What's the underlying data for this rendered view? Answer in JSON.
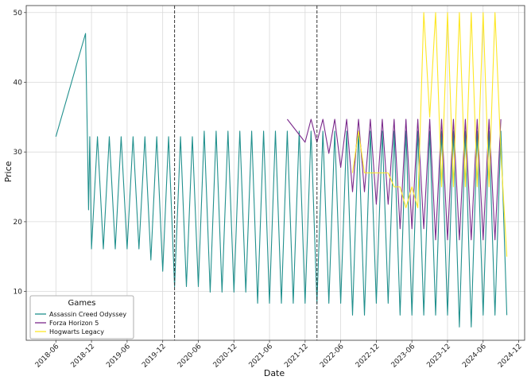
{
  "chart_data": {
    "type": "line",
    "title": "",
    "xlabel": "Date",
    "ylabel": "Price",
    "xlim": [
      "2018-01",
      "2025-01"
    ],
    "ylim": [
      3,
      51
    ],
    "grid": true,
    "legend": {
      "title": "Games",
      "placement": "bottom-left"
    },
    "x_ticks": [
      "2018-06",
      "2018-12",
      "2019-06",
      "2019-12",
      "2020-06",
      "2020-12",
      "2021-06",
      "2021-12",
      "2022-06",
      "2022-12",
      "2023-06",
      "2023-12",
      "2024-06",
      "2024-12"
    ],
    "y_ticks": [
      10,
      20,
      30,
      40,
      50
    ],
    "vertical_lines": [
      "2020-02",
      "2022-02"
    ],
    "series": [
      {
        "name": "Assassin Creed Odyssey",
        "color": "#21908d",
        "x": [
          "2018-06",
          "2018-11",
          "2018-11.3",
          "2018-11.5",
          "2018-11.7",
          "2018-12",
          "2019-01",
          "2019-02",
          "2019-03",
          "2019-04",
          "2019-05",
          "2019-06",
          "2019-07",
          "2019-08",
          "2019-09",
          "2019-10",
          "2019-11",
          "2019-12",
          "2020-01",
          "2020-02",
          "2020-03",
          "2020-04",
          "2020-05",
          "2020-06",
          "2020-07",
          "2020-08",
          "2020-09",
          "2020-10",
          "2020-11",
          "2020-12",
          "2021-01",
          "2021-02",
          "2021-03",
          "2021-04",
          "2021-05",
          "2021-06",
          "2021-07",
          "2021-08",
          "2021-09",
          "2021-10",
          "2021-11",
          "2021-12",
          "2022-01",
          "2022-02",
          "2022-03",
          "2022-04",
          "2022-05",
          "2022-06",
          "2022-07",
          "2022-08",
          "2022-09",
          "2022-10",
          "2022-11",
          "2022-12",
          "2023-01",
          "2023-02",
          "2023-03",
          "2023-04",
          "2023-05",
          "2023-06",
          "2023-07",
          "2023-08",
          "2023-09",
          "2023-10",
          "2023-11",
          "2023-12",
          "2024-01",
          "2024-02",
          "2024-03",
          "2024-04",
          "2024-05",
          "2024-06",
          "2024-07",
          "2024-08",
          "2024-09",
          "2024-10"
        ],
        "values": [
          32.2,
          47,
          32.2,
          21.7,
          32.2,
          16.1,
          32.2,
          16.1,
          32.2,
          16.1,
          32.2,
          16.1,
          32.2,
          16.1,
          32.2,
          14.5,
          32.2,
          12.9,
          32.2,
          10.7,
          32.2,
          10.7,
          32.2,
          10.7,
          33,
          9.9,
          33,
          9.9,
          33,
          9.9,
          33,
          9.9,
          33,
          8.3,
          33,
          8.3,
          33,
          8.3,
          33,
          8.3,
          33,
          8.3,
          33,
          8.3,
          33,
          8.3,
          33,
          8.3,
          33,
          6.6,
          33,
          6.6,
          33,
          8.3,
          33,
          8.3,
          33,
          6.6,
          33,
          6.6,
          33,
          6.6,
          33,
          6.6,
          33,
          6.6,
          33,
          4.9,
          33,
          4.9,
          33,
          6.6,
          33,
          6.6,
          33,
          6.6
        ]
      },
      {
        "name": "Forza Horizon 5",
        "color": "#7b2a8c",
        "x": [
          "2021-09",
          "2021-12",
          "2022-01",
          "2022-02",
          "2022-03",
          "2022-04",
          "2022-05",
          "2022-06",
          "2022-07",
          "2022-08",
          "2022-09",
          "2022-10",
          "2022-11",
          "2022-12",
          "2023-01",
          "2023-02",
          "2023-03",
          "2023-04",
          "2023-05",
          "2023-06",
          "2023-07",
          "2023-08",
          "2023-09",
          "2023-10",
          "2023-11",
          "2023-12",
          "2024-01",
          "2024-02",
          "2024-03",
          "2024-04",
          "2024-05",
          "2024-06",
          "2024-07",
          "2024-08",
          "2024-09"
        ],
        "values": [
          34.7,
          31.4,
          34.7,
          31.4,
          34.7,
          29.8,
          34.7,
          27.8,
          34.7,
          24.3,
          34.7,
          24.3,
          34.7,
          22.5,
          34.7,
          22.5,
          34.7,
          19,
          34.7,
          19,
          34.7,
          19,
          34.7,
          17.4,
          34.7,
          17.4,
          34.7,
          17.4,
          34.7,
          17.4,
          34.7,
          17.4,
          34.7,
          17.4,
          34.7
        ]
      },
      {
        "name": "Hogwarts Legacy",
        "color": "#fde725",
        "x": [
          "2022-08",
          "2022-09",
          "2022-10",
          "2022-11",
          "2022-12",
          "2023-01",
          "2023-02",
          "2023-03",
          "2023-04",
          "2023-05",
          "2023-06",
          "2023-07",
          "2023-08",
          "2023-09",
          "2023-10",
          "2023-11",
          "2023-12",
          "2024-01",
          "2024-02",
          "2024-03",
          "2024-04",
          "2024-05",
          "2024-06",
          "2024-07",
          "2024-08",
          "2024-09",
          "2024-10"
        ],
        "values": [
          27,
          33,
          27,
          27,
          27,
          27,
          27,
          25,
          25,
          22,
          25,
          22,
          50,
          35,
          50,
          25,
          50,
          25,
          50,
          25,
          50,
          25,
          50,
          25,
          50,
          30,
          15
        ]
      }
    ]
  }
}
